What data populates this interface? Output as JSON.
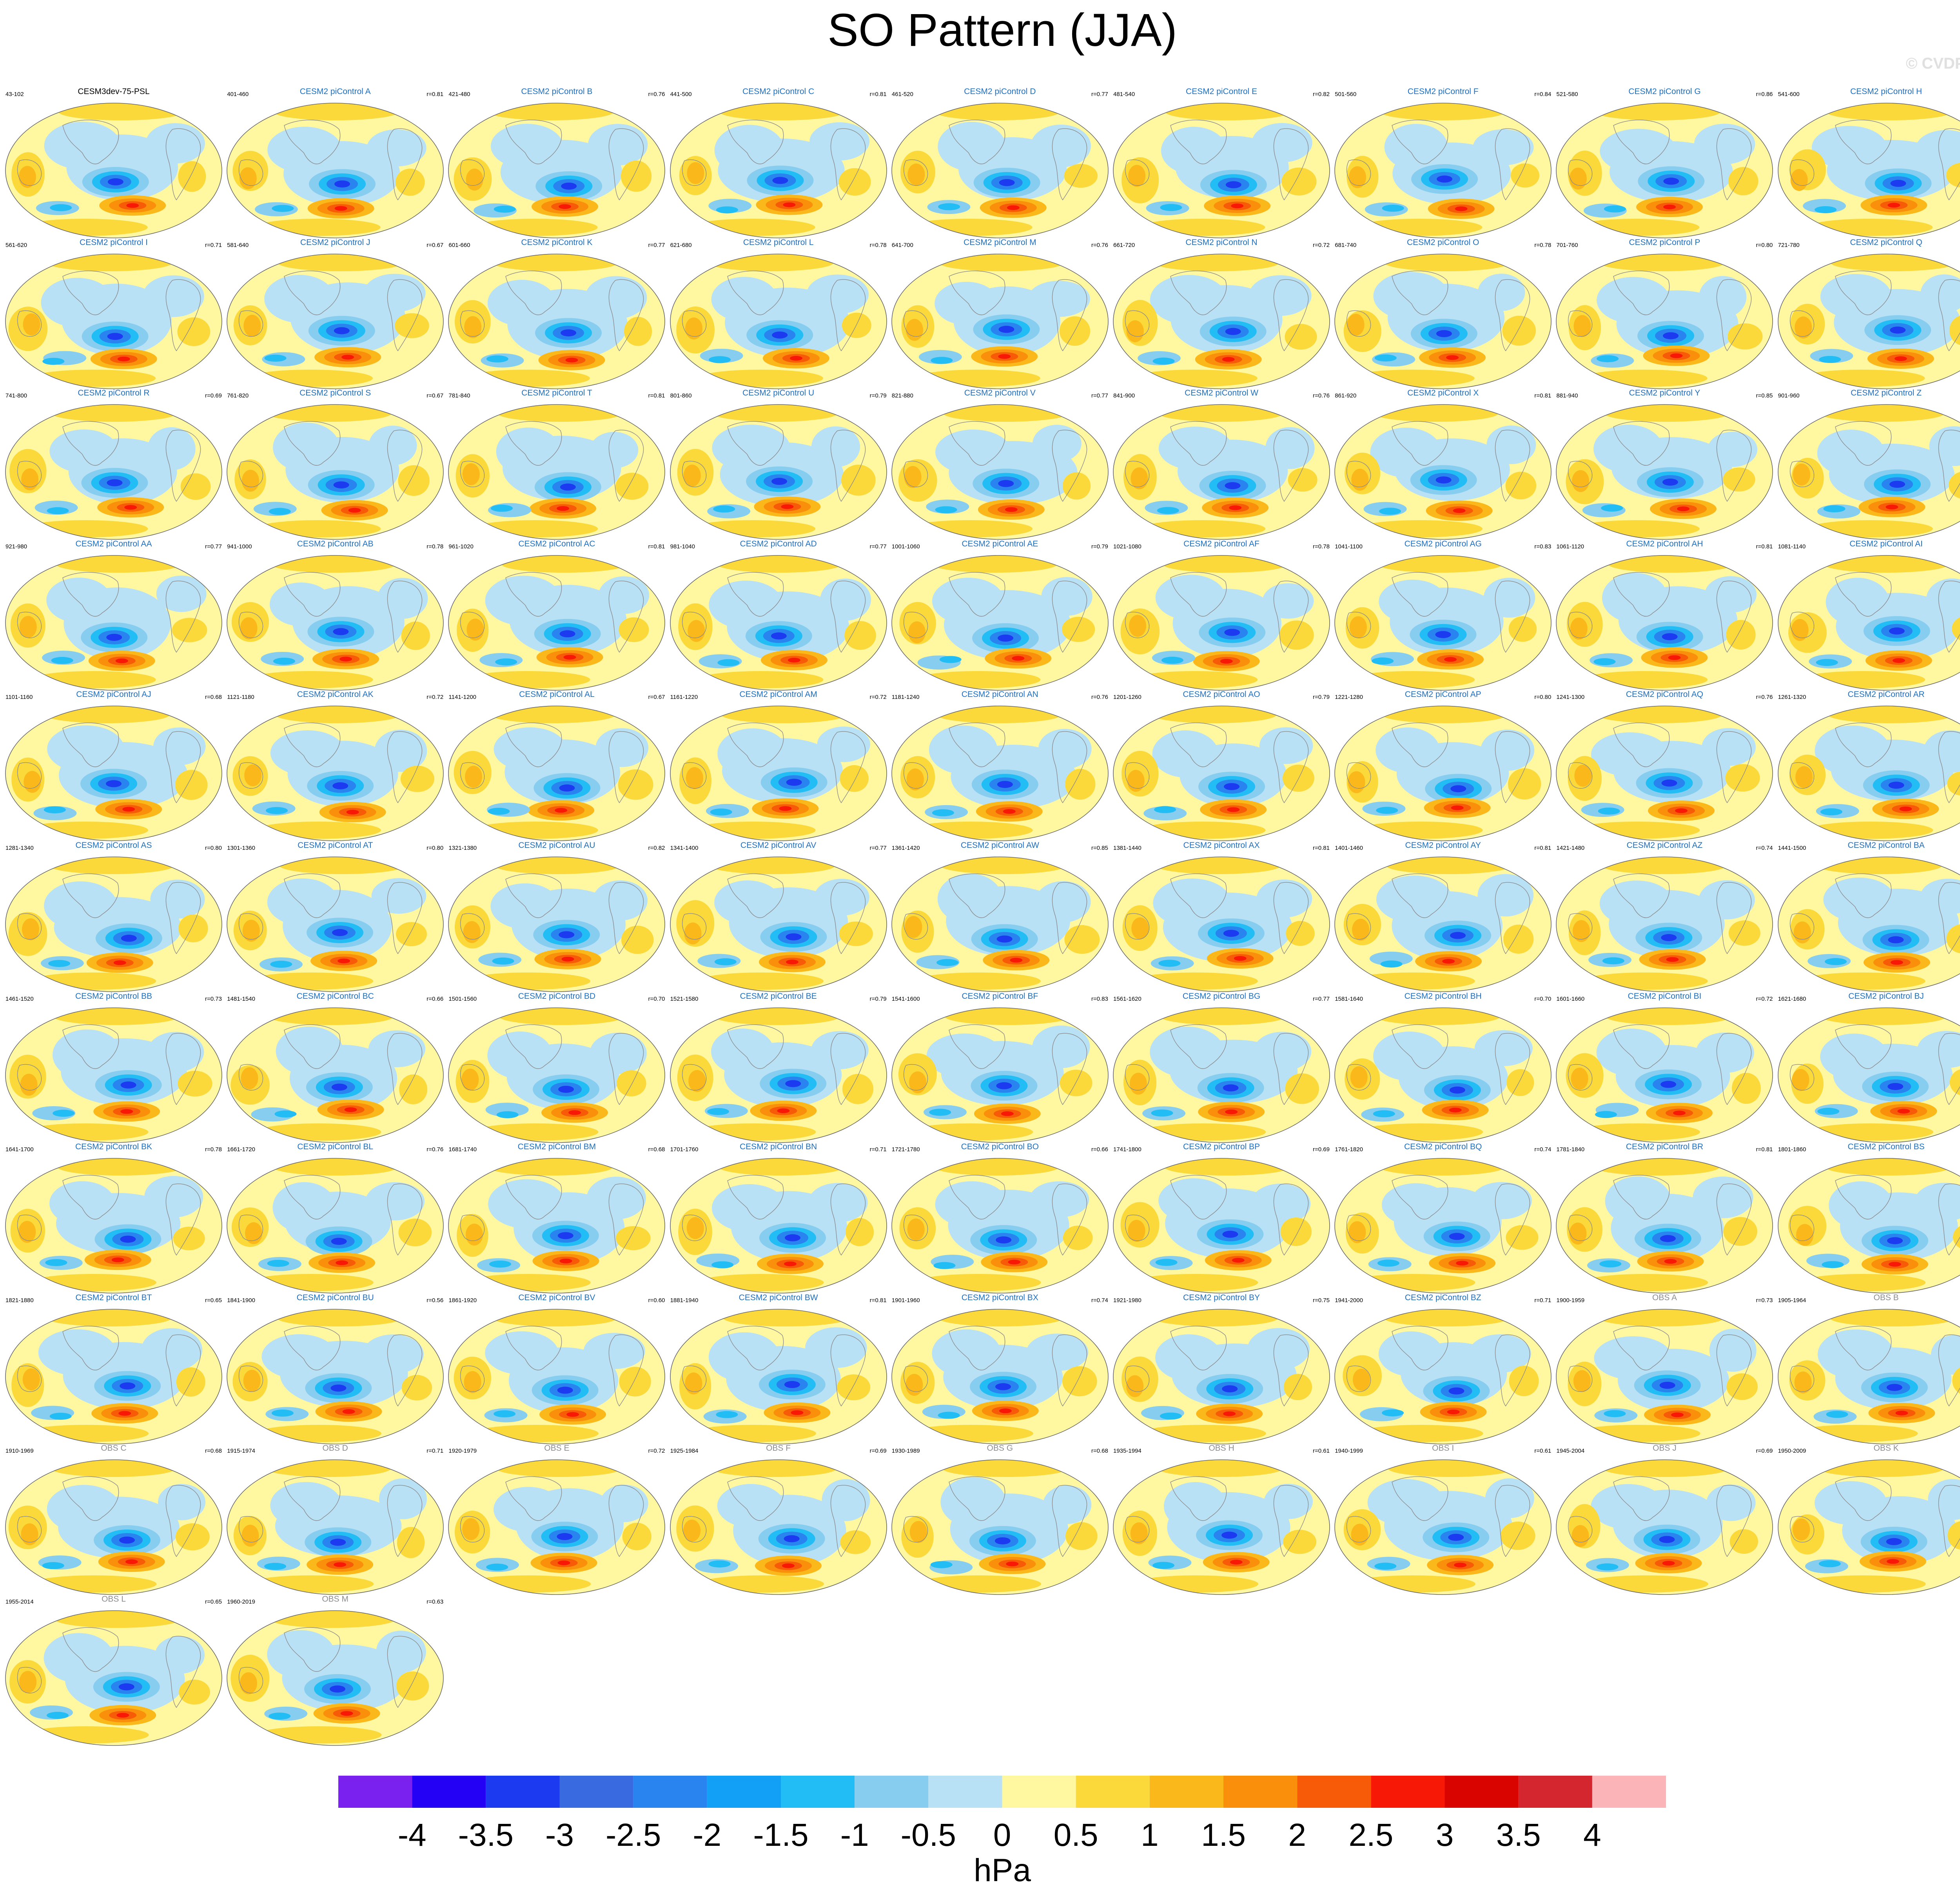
{
  "title": "SO Pattern (JJA)",
  "watermark": "© CVDP-LE",
  "legend": {
    "units": "hPa",
    "labels": [
      "-4",
      "-3.5",
      "-3",
      "-2.5",
      "-2",
      "-1.5",
      "-1",
      "-0.5",
      "0",
      "0.5",
      "1",
      "1.5",
      "2",
      "2.5",
      "3",
      "3.5",
      "4"
    ],
    "colors": [
      "#7a20ef",
      "#2400f5",
      "#1c3af0",
      "#3a6ae0",
      "#2a84f0",
      "#11a0f5",
      "#22bdf5",
      "#86cdf0",
      "#b9e1f5",
      "#fff8a0",
      "#fcd93a",
      "#fbb81a",
      "#f98f0a",
      "#f75b08",
      "#f81806",
      "#d90300",
      "#d3262e",
      "#fbb4b8"
    ]
  },
  "panels": [
    {
      "title": "CESM3dev-75-PSL",
      "years": "43-102",
      "corr": "",
      "kind": "main"
    },
    {
      "title": "CESM2 piControl A",
      "years": "401-460",
      "corr": "r=0.81",
      "kind": "model"
    },
    {
      "title": "CESM2 piControl B",
      "years": "421-480",
      "corr": "r=0.76",
      "kind": "model"
    },
    {
      "title": "CESM2 piControl C",
      "years": "441-500",
      "corr": "r=0.81",
      "kind": "model"
    },
    {
      "title": "CESM2 piControl D",
      "years": "461-520",
      "corr": "r=0.77",
      "kind": "model"
    },
    {
      "title": "CESM2 piControl E",
      "years": "481-540",
      "corr": "r=0.82",
      "kind": "model"
    },
    {
      "title": "CESM2 piControl F",
      "years": "501-560",
      "corr": "r=0.84",
      "kind": "model"
    },
    {
      "title": "CESM2 piControl G",
      "years": "521-580",
      "corr": "r=0.86",
      "kind": "model"
    },
    {
      "title": "CESM2 piControl H",
      "years": "541-600",
      "corr": "r=0.76",
      "kind": "model"
    },
    {
      "title": "CESM2 piControl I",
      "years": "561-620",
      "corr": "r=0.71",
      "kind": "model"
    },
    {
      "title": "CESM2 piControl J",
      "years": "581-640",
      "corr": "r=0.67",
      "kind": "model"
    },
    {
      "title": "CESM2 piControl K",
      "years": "601-660",
      "corr": "r=0.77",
      "kind": "model"
    },
    {
      "title": "CESM2 piControl L",
      "years": "621-680",
      "corr": "r=0.78",
      "kind": "model"
    },
    {
      "title": "CESM2 piControl M",
      "years": "641-700",
      "corr": "r=0.76",
      "kind": "model"
    },
    {
      "title": "CESM2 piControl N",
      "years": "661-720",
      "corr": "r=0.72",
      "kind": "model"
    },
    {
      "title": "CESM2 piControl O",
      "years": "681-740",
      "corr": "r=0.78",
      "kind": "model"
    },
    {
      "title": "CESM2 piControl P",
      "years": "701-760",
      "corr": "r=0.80",
      "kind": "model"
    },
    {
      "title": "CESM2 piControl Q",
      "years": "721-780",
      "corr": "r=0.73",
      "kind": "model"
    },
    {
      "title": "CESM2 piControl R",
      "years": "741-800",
      "corr": "r=0.69",
      "kind": "model"
    },
    {
      "title": "CESM2 piControl S",
      "years": "761-820",
      "corr": "r=0.67",
      "kind": "model"
    },
    {
      "title": "CESM2 piControl T",
      "years": "781-840",
      "corr": "r=0.81",
      "kind": "model"
    },
    {
      "title": "CESM2 piControl U",
      "years": "801-860",
      "corr": "r=0.79",
      "kind": "model"
    },
    {
      "title": "CESM2 piControl V",
      "years": "821-880",
      "corr": "r=0.77",
      "kind": "model"
    },
    {
      "title": "CESM2 piControl W",
      "years": "841-900",
      "corr": "r=0.76",
      "kind": "model"
    },
    {
      "title": "CESM2 piControl X",
      "years": "861-920",
      "corr": "r=0.81",
      "kind": "model"
    },
    {
      "title": "CESM2 piControl Y",
      "years": "881-940",
      "corr": "r=0.85",
      "kind": "model"
    },
    {
      "title": "CESM2 piControl Z",
      "years": "901-960",
      "corr": "r=0.80",
      "kind": "model"
    },
    {
      "title": "CESM2 piControl AA",
      "years": "921-980",
      "corr": "r=0.77",
      "kind": "model"
    },
    {
      "title": "CESM2 piControl AB",
      "years": "941-1000",
      "corr": "r=0.78",
      "kind": "model"
    },
    {
      "title": "CESM2 piControl AC",
      "years": "961-1020",
      "corr": "r=0.81",
      "kind": "model"
    },
    {
      "title": "CESM2 piControl AD",
      "years": "981-1040",
      "corr": "r=0.77",
      "kind": "model"
    },
    {
      "title": "CESM2 piControl AE",
      "years": "1001-1060",
      "corr": "r=0.79",
      "kind": "model"
    },
    {
      "title": "CESM2 piControl AF",
      "years": "1021-1080",
      "corr": "r=0.78",
      "kind": "model"
    },
    {
      "title": "CESM2 piControl AG",
      "years": "1041-1100",
      "corr": "r=0.83",
      "kind": "model"
    },
    {
      "title": "CESM2 piControl AH",
      "years": "1061-1120",
      "corr": "r=0.81",
      "kind": "model"
    },
    {
      "title": "CESM2 piControl AI",
      "years": "1081-1140",
      "corr": "r=0.77",
      "kind": "model"
    },
    {
      "title": "CESM2 piControl AJ",
      "years": "1101-1160",
      "corr": "r=0.68",
      "kind": "model"
    },
    {
      "title": "CESM2 piControl AK",
      "years": "1121-1180",
      "corr": "r=0.72",
      "kind": "model"
    },
    {
      "title": "CESM2 piControl AL",
      "years": "1141-1200",
      "corr": "r=0.67",
      "kind": "model"
    },
    {
      "title": "CESM2 piControl AM",
      "years": "1161-1220",
      "corr": "r=0.72",
      "kind": "model"
    },
    {
      "title": "CESM2 piControl AN",
      "years": "1181-1240",
      "corr": "r=0.76",
      "kind": "model"
    },
    {
      "title": "CESM2 piControl AO",
      "years": "1201-1260",
      "corr": "r=0.79",
      "kind": "model"
    },
    {
      "title": "CESM2 piControl AP",
      "years": "1221-1280",
      "corr": "r=0.80",
      "kind": "model"
    },
    {
      "title": "CESM2 piControl AQ",
      "years": "1241-1300",
      "corr": "r=0.76",
      "kind": "model"
    },
    {
      "title": "CESM2 piControl AR",
      "years": "1261-1320",
      "corr": "r=0.76",
      "kind": "model"
    },
    {
      "title": "CESM2 piControl AS",
      "years": "1281-1340",
      "corr": "r=0.80",
      "kind": "model"
    },
    {
      "title": "CESM2 piControl AT",
      "years": "1301-1360",
      "corr": "r=0.80",
      "kind": "model"
    },
    {
      "title": "CESM2 piControl AU",
      "years": "1321-1380",
      "corr": "r=0.82",
      "kind": "model"
    },
    {
      "title": "CESM2 piControl AV",
      "years": "1341-1400",
      "corr": "r=0.77",
      "kind": "model"
    },
    {
      "title": "CESM2 piControl AW",
      "years": "1361-1420",
      "corr": "r=0.85",
      "kind": "model"
    },
    {
      "title": "CESM2 piControl AX",
      "years": "1381-1440",
      "corr": "r=0.81",
      "kind": "model"
    },
    {
      "title": "CESM2 piControl AY",
      "years": "1401-1460",
      "corr": "r=0.81",
      "kind": "model"
    },
    {
      "title": "CESM2 piControl AZ",
      "years": "1421-1480",
      "corr": "r=0.74",
      "kind": "model"
    },
    {
      "title": "CESM2 piControl BA",
      "years": "1441-1500",
      "corr": "r=0.74",
      "kind": "model"
    },
    {
      "title": "CESM2 piControl BB",
      "years": "1461-1520",
      "corr": "r=0.73",
      "kind": "model"
    },
    {
      "title": "CESM2 piControl BC",
      "years": "1481-1540",
      "corr": "r=0.66",
      "kind": "model"
    },
    {
      "title": "CESM2 piControl BD",
      "years": "1501-1560",
      "corr": "r=0.70",
      "kind": "model"
    },
    {
      "title": "CESM2 piControl BE",
      "years": "1521-1580",
      "corr": "r=0.79",
      "kind": "model"
    },
    {
      "title": "CESM2 piControl BF",
      "years": "1541-1600",
      "corr": "r=0.83",
      "kind": "model"
    },
    {
      "title": "CESM2 piControl BG",
      "years": "1561-1620",
      "corr": "r=0.77",
      "kind": "model"
    },
    {
      "title": "CESM2 piControl BH",
      "years": "1581-1640",
      "corr": "r=0.70",
      "kind": "model"
    },
    {
      "title": "CESM2 piControl BI",
      "years": "1601-1660",
      "corr": "r=0.72",
      "kind": "model"
    },
    {
      "title": "CESM2 piControl BJ",
      "years": "1621-1680",
      "corr": "r=0.81",
      "kind": "model"
    },
    {
      "title": "CESM2 piControl BK",
      "years": "1641-1700",
      "corr": "r=0.78",
      "kind": "model"
    },
    {
      "title": "CESM2 piControl BL",
      "years": "1661-1720",
      "corr": "r=0.76",
      "kind": "model"
    },
    {
      "title": "CESM2 piControl BM",
      "years": "1681-1740",
      "corr": "r=0.68",
      "kind": "model"
    },
    {
      "title": "CESM2 piControl BN",
      "years": "1701-1760",
      "corr": "r=0.71",
      "kind": "model"
    },
    {
      "title": "CESM2 piControl BO",
      "years": "1721-1780",
      "corr": "r=0.66",
      "kind": "model"
    },
    {
      "title": "CESM2 piControl BP",
      "years": "1741-1800",
      "corr": "r=0.69",
      "kind": "model"
    },
    {
      "title": "CESM2 piControl BQ",
      "years": "1761-1820",
      "corr": "r=0.74",
      "kind": "model"
    },
    {
      "title": "CESM2 piControl BR",
      "years": "1781-1840",
      "corr": "r=0.81",
      "kind": "model"
    },
    {
      "title": "CESM2 piControl BS",
      "years": "1801-1860",
      "corr": "r=0.77",
      "kind": "model"
    },
    {
      "title": "CESM2 piControl BT",
      "years": "1821-1880",
      "corr": "r=0.65",
      "kind": "model"
    },
    {
      "title": "CESM2 piControl BU",
      "years": "1841-1900",
      "corr": "r=0.56",
      "kind": "model"
    },
    {
      "title": "CESM2 piControl BV",
      "years": "1861-1920",
      "corr": "r=0.60",
      "kind": "model"
    },
    {
      "title": "CESM2 piControl BW",
      "years": "1881-1940",
      "corr": "r=0.81",
      "kind": "model"
    },
    {
      "title": "CESM2 piControl BX",
      "years": "1901-1960",
      "corr": "r=0.74",
      "kind": "model"
    },
    {
      "title": "CESM2 piControl BY",
      "years": "1921-1980",
      "corr": "r=0.75",
      "kind": "model"
    },
    {
      "title": "CESM2 piControl BZ",
      "years": "1941-2000",
      "corr": "r=0.71",
      "kind": "model"
    },
    {
      "title": "OBS A",
      "years": "1900-1959",
      "corr": "r=0.73",
      "kind": "obs"
    },
    {
      "title": "OBS B",
      "years": "1905-1964",
      "corr": "r=0.72",
      "kind": "obs"
    },
    {
      "title": "OBS C",
      "years": "1910-1969",
      "corr": "r=0.68",
      "kind": "obs"
    },
    {
      "title": "OBS D",
      "years": "1915-1974",
      "corr": "r=0.71",
      "kind": "obs"
    },
    {
      "title": "OBS E",
      "years": "1920-1979",
      "corr": "r=0.72",
      "kind": "obs"
    },
    {
      "title": "OBS F",
      "years": "1925-1984",
      "corr": "r=0.69",
      "kind": "obs"
    },
    {
      "title": "OBS G",
      "years": "1930-1989",
      "corr": "r=0.68",
      "kind": "obs"
    },
    {
      "title": "OBS H",
      "years": "1935-1994",
      "corr": "r=0.61",
      "kind": "obs"
    },
    {
      "title": "OBS I",
      "years": "1940-1999",
      "corr": "r=0.61",
      "kind": "obs"
    },
    {
      "title": "OBS J",
      "years": "1945-2004",
      "corr": "r=0.69",
      "kind": "obs"
    },
    {
      "title": "OBS K",
      "years": "1950-2009",
      "corr": "r=0.66",
      "kind": "obs"
    },
    {
      "title": "OBS L",
      "years": "1955-2014",
      "corr": "r=0.65",
      "kind": "obs"
    },
    {
      "title": "OBS M",
      "years": "1960-2019",
      "corr": "r=0.63",
      "kind": "obs"
    }
  ]
}
